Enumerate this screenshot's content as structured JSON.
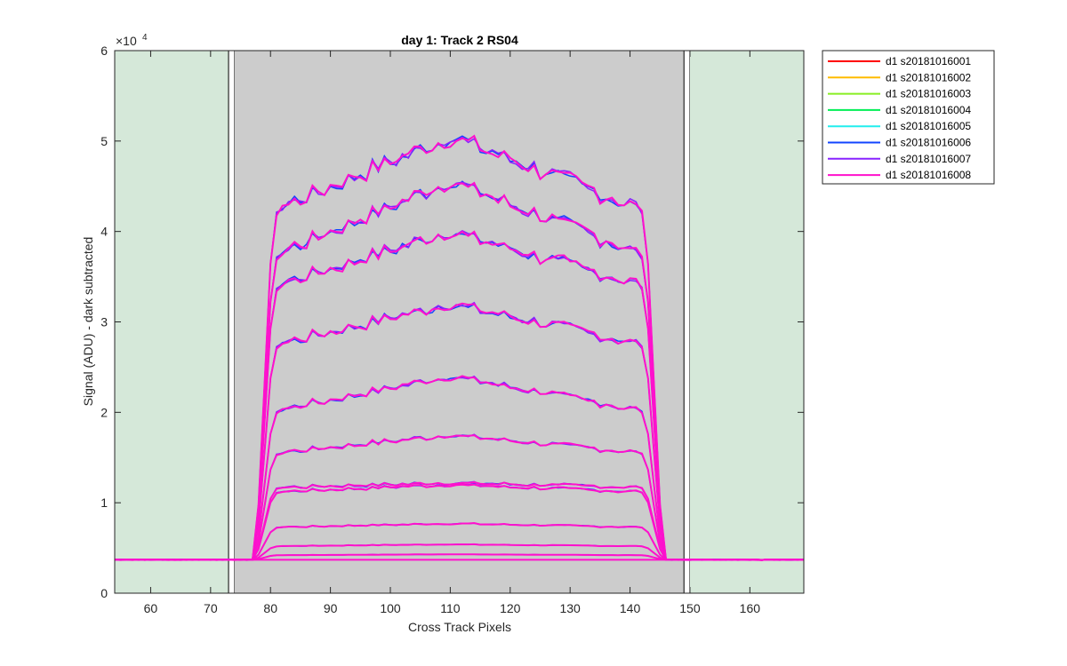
{
  "chart_data": {
    "type": "line",
    "title": "day 1: Track 2  RS04",
    "xlabel": "Cross Track Pixels",
    "ylabel": "Signal (ADU) - dark subtracted",
    "exponent_label": "×10",
    "exponent_power": "4",
    "xlim": [
      54,
      169
    ],
    "ylim": [
      0,
      60000
    ],
    "x_ticks": [
      60,
      70,
      80,
      90,
      100,
      110,
      120,
      130,
      140,
      150,
      160
    ],
    "y_ticks": [
      0,
      1,
      2,
      3,
      4,
      5,
      6
    ],
    "y_tick_scale": 10000,
    "grid": false,
    "legend_position": "outside top-right",
    "regions": [
      {
        "kind": "excluded",
        "x_range": [
          54,
          73
        ],
        "color": "#d5e8d9"
      },
      {
        "kind": "marker",
        "x_range": [
          73,
          74
        ],
        "color": "#ffffff"
      },
      {
        "kind": "active",
        "x_range": [
          74,
          149
        ],
        "color": "#cccccc"
      },
      {
        "kind": "marker",
        "x_range": [
          149,
          150
        ],
        "color": "#ffffff"
      },
      {
        "kind": "excluded",
        "x_range": [
          150,
          169
        ],
        "color": "#d5e8d9"
      }
    ],
    "profile_edges": {
      "rise_start": 77,
      "plateau_start": 81,
      "plateau_end": 142,
      "fall_end": 146
    },
    "baseline": 3700,
    "plateau_levels": [
      4200,
      5200,
      7300,
      11200,
      11700,
      15500,
      20200,
      27500,
      34000,
      37500,
      42500
    ],
    "plateau_levels_at_center_x110": [
      4300,
      5400,
      7700,
      12000,
      12200,
      17500,
      24000,
      32000,
      40000,
      45500,
      50500
    ],
    "series": [
      {
        "name": "d1 s20181016001",
        "color": "#ff0000"
      },
      {
        "name": "d1 s20181016002",
        "color": "#ffbb00"
      },
      {
        "name": "d1 s20181016003",
        "color": "#88ee22"
      },
      {
        "name": "d1 s20181016004",
        "color": "#00ee55"
      },
      {
        "name": "d1 s20181016005",
        "color": "#22eeee"
      },
      {
        "name": "d1 s20181016006",
        "color": "#1144ff"
      },
      {
        "name": "d1 s20181016007",
        "color": "#8822ff"
      },
      {
        "name": "d1 s20181016008",
        "color": "#ff11cc"
      }
    ]
  }
}
